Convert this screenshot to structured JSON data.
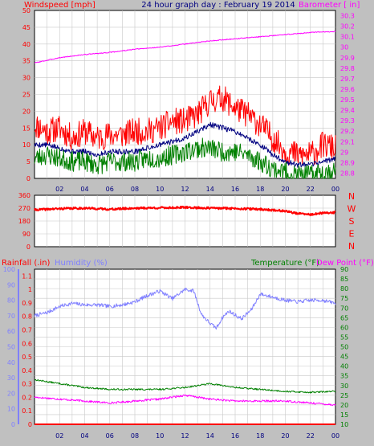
{
  "colors": {
    "background": "#c0c0c0",
    "plot_background": "#ffffff",
    "grid": "#c8c8c8",
    "wind_axis": "#ff0000",
    "baro_axis": "#ff00ff",
    "dir_axis": "#ff0000",
    "hum_axis": "#8080ff",
    "temp_axis": "#008000",
    "x_ticks": "#000080"
  },
  "header": {
    "left": "Windspeed [mph]",
    "center": "24 hour graph day : February 19 2014",
    "right": "Barometer [ in]"
  },
  "lower_header": {
    "rain": "Rainfall (.in)",
    "humidity": "Humidity (%)",
    "temperature": "Temperature (°F)",
    "dewpoint": "Dew Point (°F)"
  },
  "x_ticks": [
    "02",
    "04",
    "06",
    "08",
    "10",
    "12",
    "14",
    "16",
    "18",
    "20",
    "22",
    "00"
  ],
  "compass": [
    "N",
    "W",
    "S",
    "E",
    "N"
  ],
  "chart_data": [
    {
      "type": "line",
      "title": "24 hour graph day : February 19 2014",
      "x_unit": "hour",
      "x_ticks": [
        "02",
        "04",
        "06",
        "08",
        "10",
        "12",
        "14",
        "16",
        "18",
        "20",
        "22",
        "00"
      ],
      "grid": true,
      "yleft": {
        "label": "Windspeed [mph]",
        "ticks": [
          "0",
          "5",
          "10",
          "15",
          "20",
          "25",
          "30",
          "35",
          "40",
          "45",
          "50"
        ],
        "lim": [
          0,
          50
        ]
      },
      "yright": {
        "label": "Barometer [ in]",
        "ticks": [
          "28.8",
          "28.9",
          "29",
          "29.1",
          "29.2",
          "29.3",
          "29.4",
          "29.5",
          "29.6",
          "29.7",
          "29.8",
          "29.9",
          "30",
          "30.1",
          "30.2",
          "30.3"
        ],
        "lim": [
          28.75,
          30.35
        ]
      },
      "series": [
        {
          "key": "gust",
          "color": "#ff0000",
          "axis": "left",
          "noise": 4,
          "seed": 11,
          "x": [
            0,
            1,
            2,
            3,
            4,
            5,
            6,
            7,
            8,
            9,
            10,
            11,
            12,
            13,
            14,
            15,
            16,
            17,
            18,
            19,
            20,
            21,
            22,
            23,
            24
          ],
          "y": [
            16,
            14,
            15,
            12,
            14,
            12,
            13,
            13,
            14,
            14,
            15,
            17,
            17,
            19,
            23,
            24,
            21,
            19,
            16,
            12,
            8,
            7,
            7,
            10,
            9
          ]
        },
        {
          "key": "avg",
          "color": "#000080",
          "axis": "left",
          "noise": 0.8,
          "seed": 5,
          "x": [
            0,
            1,
            2,
            3,
            4,
            5,
            6,
            7,
            8,
            9,
            10,
            11,
            12,
            13,
            14,
            15,
            16,
            17,
            18,
            19,
            20,
            21,
            22,
            23,
            24
          ],
          "y": [
            10,
            10,
            9,
            8,
            8,
            7,
            8,
            8,
            8,
            9,
            10,
            11,
            12,
            14,
            16,
            15,
            14,
            12,
            10,
            7,
            5,
            4,
            4,
            5,
            6
          ]
        },
        {
          "key": "wind",
          "color": "#008000",
          "axis": "left",
          "noise": 3,
          "seed": 23,
          "x": [
            0,
            1,
            2,
            3,
            4,
            5,
            6,
            7,
            8,
            9,
            10,
            11,
            12,
            13,
            14,
            15,
            16,
            17,
            18,
            19,
            20,
            21,
            22,
            23,
            24
          ],
          "y": [
            6,
            7,
            6,
            5,
            5,
            4,
            5,
            5,
            5,
            6,
            6,
            7,
            8,
            9,
            9,
            8,
            8,
            7,
            5,
            3,
            2,
            1,
            1,
            2,
            2
          ]
        },
        {
          "key": "barometer",
          "color": "#ff00ff",
          "axis": "right",
          "noise": 0.004,
          "seed": 3,
          "x": [
            0,
            2,
            4,
            6,
            8,
            10,
            12,
            14,
            16,
            18,
            20,
            22,
            24
          ],
          "y": [
            29.85,
            29.9,
            29.93,
            29.95,
            29.98,
            30.0,
            30.03,
            30.06,
            30.08,
            30.1,
            30.12,
            30.14,
            30.15
          ]
        }
      ]
    },
    {
      "type": "line",
      "x_unit": "hour",
      "ylim": [
        0,
        360
      ],
      "y_ticks": [
        "0",
        "90",
        "180",
        "270",
        "360"
      ],
      "compass": [
        "N",
        "W",
        "S",
        "E",
        "N"
      ],
      "series": [
        {
          "key": "direction",
          "color": "#ff0000",
          "noise": 7,
          "seed": 41,
          "x": [
            0,
            2,
            4,
            6,
            8,
            10,
            12,
            14,
            16,
            18,
            20,
            21,
            22,
            23,
            24
          ],
          "y": [
            258,
            266,
            270,
            262,
            270,
            272,
            275,
            270,
            268,
            262,
            250,
            232,
            225,
            235,
            240
          ]
        }
      ]
    },
    {
      "type": "line",
      "x_unit": "hour",
      "yleft1": {
        "label": "Rainfall (.in)",
        "ticks": [
          "0",
          "0.1",
          "0.2",
          "0.3",
          "0.4",
          "0.5",
          "0.6",
          "0.7",
          "0.8",
          "0.9",
          "1",
          "1.1"
        ],
        "lim": [
          0,
          1.15
        ]
      },
      "yleft2": {
        "label": "Humidity (%)",
        "ticks": [
          "0",
          "10",
          "20",
          "30",
          "40",
          "50",
          "60",
          "70",
          "80",
          "90",
          "100"
        ],
        "lim": [
          0,
          100
        ]
      },
      "yright": {
        "label": "Temperature (°F)",
        "ticks": [
          "10",
          "15",
          "20",
          "25",
          "30",
          "35",
          "40",
          "45",
          "50",
          "55",
          "60",
          "65",
          "70",
          "75",
          "80",
          "85",
          "90"
        ],
        "lim": [
          10,
          90
        ]
      },
      "series": [
        {
          "key": "humidity",
          "color": "#8080ff",
          "axis": "hum",
          "noise": 1.2,
          "seed": 7,
          "x": [
            0,
            1,
            2,
            3,
            4,
            5,
            6,
            7,
            8,
            9,
            10,
            11,
            12,
            12.7,
            13.3,
            14,
            14.5,
            15,
            15.5,
            16.5,
            17.3,
            18,
            19,
            20,
            21,
            22,
            23,
            24
          ],
          "y": [
            70,
            72,
            76,
            78,
            77,
            77,
            76,
            77,
            79,
            83,
            86,
            81,
            87,
            86,
            71,
            65,
            62,
            69,
            73,
            68,
            74,
            84,
            82,
            80,
            79,
            80,
            80,
            78
          ]
        },
        {
          "key": "temperature",
          "color": "#008000",
          "axis": "temp",
          "noise": 0.4,
          "seed": 13,
          "x": [
            0,
            2,
            4,
            6,
            8,
            10,
            12,
            13,
            14,
            15,
            16,
            18,
            20,
            22,
            24
          ],
          "y": [
            33,
            31,
            29,
            28,
            28,
            28,
            29,
            30,
            31,
            30,
            29,
            28,
            27,
            26.5,
            27
          ]
        },
        {
          "key": "dewpoint",
          "color": "#ff00ff",
          "axis": "temp",
          "noise": 0.5,
          "seed": 17,
          "x": [
            0,
            2,
            4,
            6,
            8,
            10,
            12,
            14,
            16,
            18,
            20,
            22,
            24
          ],
          "y": [
            24,
            23,
            22,
            21,
            22,
            23,
            25,
            23,
            22,
            22,
            22,
            21,
            20
          ]
        },
        {
          "key": "rain",
          "color": "#ff0000",
          "axis": "rain",
          "x": [
            0,
            24
          ],
          "y": [
            0,
            0
          ]
        }
      ]
    }
  ]
}
